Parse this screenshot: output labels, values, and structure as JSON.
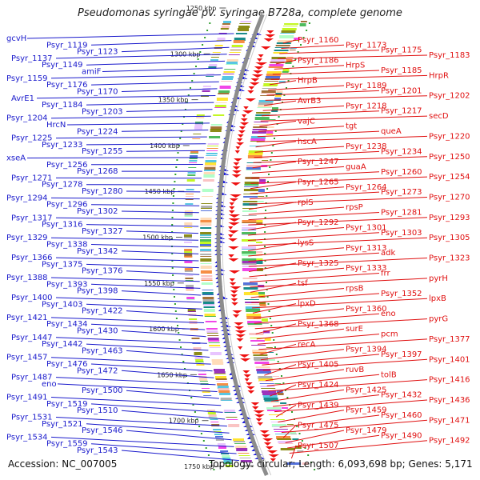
{
  "title": "Pseudomonas syringae pv. syringae B728a, complete genome",
  "footer": {
    "accession": "Accession: NC_007005",
    "topology": "Topology: circular; Length: 6,093,698 bp; Genes: 5,171"
  },
  "colors": {
    "left_label": "#1a1acc",
    "right_label": "#e01010",
    "ruler": "#888888",
    "tick": "#2e9e2e"
  },
  "kbp_ticks": [
    {
      "label": "1250 kbp",
      "partial": true
    },
    {
      "label": "1300 kbp"
    },
    {
      "label": "1350 kbp"
    },
    {
      "label": "1400 kbp"
    },
    {
      "label": "1450 kbp"
    },
    {
      "label": "1500 kbp"
    },
    {
      "label": "1550 kbp"
    },
    {
      "label": "1600 kbp"
    },
    {
      "label": "1650 kbp"
    },
    {
      "label": "1700 kbp"
    },
    {
      "label": "1750 kbp"
    }
  ],
  "left_labels": [
    "gcvH",
    "Psyr_1119",
    "Psyr_1123",
    "Psyr_1137",
    "Psyr_1149",
    "amiF",
    "Psyr_1159",
    "Psyr_1176",
    "Psyr_1170",
    "AvrE1",
    "Psyr_1184",
    "Psyr_1203",
    "Psyr_1204",
    "HrcN",
    "Psyr_1224",
    "Psyr_1225",
    "Psyr_1233",
    "Psyr_1255",
    "xseA",
    "Psyr_1256",
    "Psyr_1268",
    "Psyr_1271",
    "Psyr_1278",
    "Psyr_1280",
    "Psyr_1294",
    "Psyr_1296",
    "Psyr_1302",
    "Psyr_1317",
    "Psyr_1316",
    "Psyr_1327",
    "Psyr_1329",
    "Psyr_1338",
    "Psyr_1342",
    "Psyr_1366",
    "Psyr_1375",
    "Psyr_1376",
    "Psyr_1388",
    "Psyr_1393",
    "Psyr_1398",
    "Psyr_1400",
    "Psyr_1403",
    "Psyr_1422",
    "Psyr_1421",
    "Psyr_1434",
    "Psyr_1430",
    "Psyr_1447",
    "Psyr_1442",
    "Psyr_1463",
    "Psyr_1457",
    "Psyr_1476",
    "Psyr_1472",
    "Psyr_1487",
    "eno",
    "Psyr_1500",
    "Psyr_1491",
    "Psyr_1519",
    "Psyr_1510",
    "Psyr_1531",
    "Psyr_1521",
    "Psyr_1546",
    "Psyr_1534",
    "Psyr_1559",
    "Psyr_1543"
  ],
  "right_labels": [
    "Psyr_1160",
    "Psyr_1173",
    "Psyr_1175",
    "Psyr_1183",
    "Psyr_1186",
    "HrpS",
    "Psyr_1185",
    "HrpR",
    "HrpB",
    "Psyr_1189",
    "Psyr_1201",
    "Psyr_1202",
    "AvrB3",
    "Psyr_1218",
    "Psyr_1217",
    "secD",
    "vajC",
    "tgt",
    "queA",
    "Psyr_1220",
    "hscA",
    "Psyr_1238",
    "Psyr_1234",
    "Psyr_1250",
    "Psyr_1247",
    "guaA",
    "Psyr_1260",
    "Psyr_1254",
    "Psyr_1265",
    "Psyr_1264",
    "Psyr_1273",
    "Psyr_1270",
    "rplS",
    "rpsP",
    "Psyr_1281",
    "Psyr_1293",
    "Psyr_1292",
    "Psyr_1301",
    "Psyr_1303",
    "Psyr_1305",
    "lysS",
    "Psyr_1313",
    "adk",
    "Psyr_1323",
    "Psyr_1325",
    "Psyr_1333",
    "frr",
    "pyrH",
    "tsf",
    "rpsB",
    "Psyr_1352",
    "lpxB",
    "lpxD",
    "Psyr_1360",
    "eno",
    "pyrG",
    "Psyr_1368",
    "surE",
    "pcm",
    "Psyr_1377",
    "recA",
    "Psyr_1394",
    "Psyr_1397",
    "Psyr_1401",
    "Psyr_1405",
    "ruvB",
    "tolB",
    "Psyr_1416",
    "Psyr_1424",
    "Psyr_1425",
    "Psyr_1432",
    "Psyr_1436",
    "Psyr_1439",
    "Psyr_1459",
    "Psyr_1460",
    "Psyr_1471",
    "Psyr_1475",
    "Psyr_1479",
    "Psyr_1490",
    "Psyr_1492",
    "Psyr_1507"
  ]
}
